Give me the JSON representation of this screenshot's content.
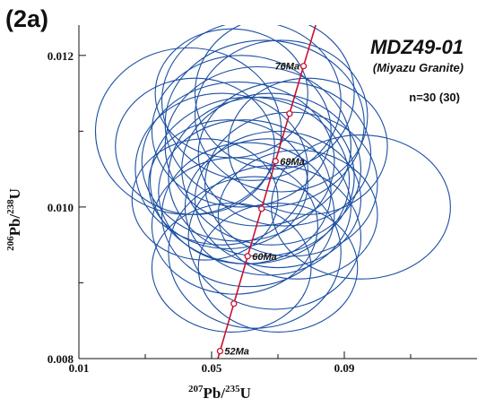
{
  "panel_label": "(2a)",
  "sample_id": "MDZ49-01",
  "sample_subtitle": "(Miyazu Granite)",
  "n_text": "n=30 (30)",
  "chart_data": {
    "type": "scatter",
    "plot_kind": "U-Pb concordia diagram with error ellipses",
    "xlabel": {
      "sup1": "207",
      "main1": "Pb/",
      "sup2": "235",
      "main2": "U"
    },
    "ylabel": {
      "sup1": "206",
      "main1": "Pb/",
      "sup2": "238",
      "main2": "U"
    },
    "xlim": [
      0.01,
      0.13
    ],
    "ylim": [
      0.008,
      0.0124
    ],
    "x_ticks": [
      0.01,
      0.05,
      0.09
    ],
    "x_minor_ticks": [
      0.03,
      0.07,
      0.11
    ],
    "y_ticks": [
      0.008,
      0.01,
      0.012
    ],
    "y_minor_ticks": [
      0.009,
      0.011
    ],
    "concordia": {
      "ages_ma": [
        46,
        48,
        52,
        56,
        60,
        64,
        68,
        72,
        76,
        80
      ],
      "labeled_ages": [
        {
          "age": 52,
          "label": "52Ma"
        },
        {
          "age": 60,
          "label": "60Ma"
        },
        {
          "age": 68,
          "label": "68Ma"
        },
        {
          "age": 76,
          "label": "76Ma"
        }
      ],
      "marker_ages": [
        52,
        56,
        60,
        64,
        68,
        72,
        76
      ]
    },
    "ellipses": [
      {
        "x": 0.0615,
        "y": 0.01035,
        "rx": 0.03,
        "ry": 0.0011
      },
      {
        "x": 0.065,
        "y": 0.0104,
        "rx": 0.028,
        "ry": 0.00105
      },
      {
        "x": 0.06,
        "y": 0.0102,
        "rx": 0.026,
        "ry": 0.00095
      },
      {
        "x": 0.068,
        "y": 0.0105,
        "rx": 0.027,
        "ry": 0.001
      },
      {
        "x": 0.058,
        "y": 0.0106,
        "rx": 0.029,
        "ry": 0.00105
      },
      {
        "x": 0.07,
        "y": 0.0101,
        "rx": 0.025,
        "ry": 0.0009
      },
      {
        "x": 0.055,
        "y": 0.0103,
        "rx": 0.024,
        "ry": 0.00085
      },
      {
        "x": 0.072,
        "y": 0.0107,
        "rx": 0.026,
        "ry": 0.00095
      },
      {
        "x": 0.064,
        "y": 0.0108,
        "rx": 0.028,
        "ry": 0.00105
      },
      {
        "x": 0.061,
        "y": 0.0099,
        "rx": 0.026,
        "ry": 0.00095
      },
      {
        "x": 0.066,
        "y": 0.0111,
        "rx": 0.03,
        "ry": 0.0011
      },
      {
        "x": 0.067,
        "y": 0.01,
        "rx": 0.025,
        "ry": 0.0009
      },
      {
        "x": 0.053,
        "y": 0.0105,
        "rx": 0.026,
        "ry": 0.001
      },
      {
        "x": 0.074,
        "y": 0.0103,
        "rx": 0.026,
        "ry": 0.00095
      },
      {
        "x": 0.059,
        "y": 0.011,
        "rx": 0.027,
        "ry": 0.001
      },
      {
        "x": 0.069,
        "y": 0.0096,
        "rx": 0.026,
        "ry": 0.00095
      },
      {
        "x": 0.057,
        "y": 0.00975,
        "rx": 0.025,
        "ry": 0.0009
      },
      {
        "x": 0.063,
        "y": 0.0094,
        "rx": 0.026,
        "ry": 0.001
      },
      {
        "x": 0.071,
        "y": 0.0112,
        "rx": 0.026,
        "ry": 0.001
      },
      {
        "x": 0.062,
        "y": 0.0114,
        "rx": 0.027,
        "ry": 0.00105
      },
      {
        "x": 0.045,
        "y": 0.0108,
        "rx": 0.024,
        "ry": 0.0009
      },
      {
        "x": 0.048,
        "y": 0.0101,
        "rx": 0.022,
        "ry": 0.0008
      },
      {
        "x": 0.076,
        "y": 0.0099,
        "rx": 0.024,
        "ry": 0.00085
      },
      {
        "x": 0.079,
        "y": 0.0108,
        "rx": 0.024,
        "ry": 0.0009
      },
      {
        "x": 0.069,
        "y": 0.0115,
        "rx": 0.024,
        "ry": 0.001
      },
      {
        "x": 0.056,
        "y": 0.0115,
        "rx": 0.023,
        "ry": 0.00085
      },
      {
        "x": 0.07,
        "y": 0.0092,
        "rx": 0.024,
        "ry": 0.00085
      },
      {
        "x": 0.056,
        "y": 0.0092,
        "rx": 0.024,
        "ry": 0.00085
      },
      {
        "x": 0.043,
        "y": 0.011,
        "rx": 0.028,
        "ry": 0.0011
      },
      {
        "x": 0.095,
        "y": 0.01,
        "rx": 0.027,
        "ry": 0.00095
      }
    ]
  }
}
